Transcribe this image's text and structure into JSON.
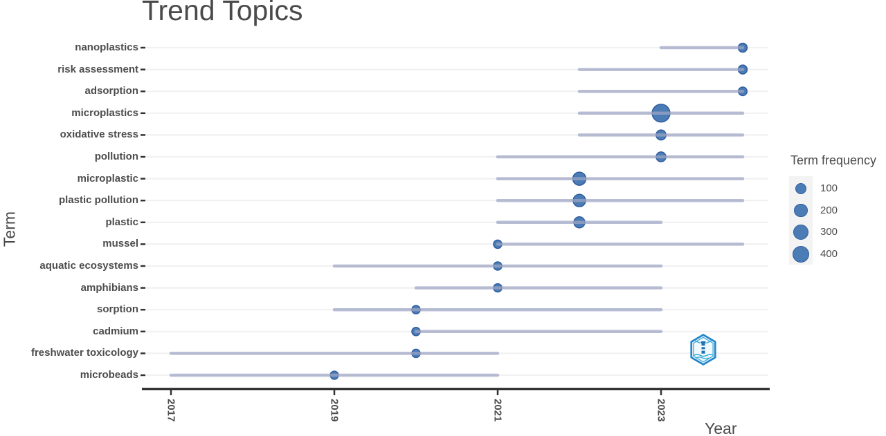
{
  "title": "Trend Topics",
  "axes": {
    "x_label": "Year",
    "y_label": "Term",
    "x_ticks": [
      2017,
      2019,
      2021,
      2023
    ]
  },
  "legend": {
    "title": "Term frequency",
    "sizes": [
      100,
      200,
      300,
      400
    ]
  },
  "colors": {
    "dot_fill": "#4c7cb5",
    "dot_stroke": "#2f5d9e",
    "range_line": "#9ea6c4",
    "gridline": "#f1f1f4",
    "axis_line": "#1a1a1a",
    "tick": "#333333",
    "text": "#4d4d4d"
  },
  "logo": {
    "name": "hexagon-lighthouse-watermark",
    "outer": "#2386c8",
    "inner": "#36a9d8",
    "tower": "#1d6fb0"
  },
  "chart_data": {
    "type": "scatter",
    "variant": "trend-topics-range",
    "title": "Trend Topics",
    "xlabel": "Year",
    "ylabel": "Term",
    "xlim": [
      2016.6,
      2024.3
    ],
    "grid": "horizontal",
    "legend_position": "right",
    "size_legend": {
      "title": "Term frequency",
      "values": [
        100,
        200,
        300,
        400
      ]
    },
    "rows": [
      {
        "term": "nanoplastics",
        "year_q1": 2023,
        "year_med": 2024,
        "year_q3": 2024,
        "frequency": 25
      },
      {
        "term": "risk assessment",
        "year_q1": 2022,
        "year_med": 2024,
        "year_q3": 2024,
        "frequency": 25
      },
      {
        "term": "adsorption",
        "year_q1": 2022,
        "year_med": 2024,
        "year_q3": 2024,
        "frequency": 20
      },
      {
        "term": "microplastics",
        "year_q1": 2022,
        "year_med": 2023,
        "year_q3": 2024,
        "frequency": 500
      },
      {
        "term": "oxidative stress",
        "year_q1": 2022,
        "year_med": 2023,
        "year_q3": 2024,
        "frequency": 50
      },
      {
        "term": "pollution",
        "year_q1": 2021,
        "year_med": 2023,
        "year_q3": 2024,
        "frequency": 45
      },
      {
        "term": "microplastic",
        "year_q1": 2021,
        "year_med": 2022,
        "year_q3": 2024,
        "frequency": 175
      },
      {
        "term": "plastic pollution",
        "year_q1": 2021,
        "year_med": 2022,
        "year_q3": 2024,
        "frequency": 140
      },
      {
        "term": "plastic",
        "year_q1": 2021,
        "year_med": 2022,
        "year_q3": 2023,
        "frequency": 85
      },
      {
        "term": "mussel",
        "year_q1": 2021,
        "year_med": 2021,
        "year_q3": 2024,
        "frequency": 15
      },
      {
        "term": "aquatic ecosystems",
        "year_q1": 2019,
        "year_med": 2021,
        "year_q3": 2023,
        "frequency": 15
      },
      {
        "term": "amphibians",
        "year_q1": 2020,
        "year_med": 2021,
        "year_q3": 2023,
        "frequency": 15
      },
      {
        "term": "sorption",
        "year_q1": 2019,
        "year_med": 2020,
        "year_q3": 2023,
        "frequency": 15
      },
      {
        "term": "cadmium",
        "year_q1": 2020,
        "year_med": 2020,
        "year_q3": 2023,
        "frequency": 15
      },
      {
        "term": "freshwater toxicology",
        "year_q1": 2017,
        "year_med": 2020,
        "year_q3": 2021,
        "frequency": 15
      },
      {
        "term": "microbeads",
        "year_q1": 2017,
        "year_med": 2019,
        "year_q3": 2021,
        "frequency": 12
      }
    ]
  }
}
